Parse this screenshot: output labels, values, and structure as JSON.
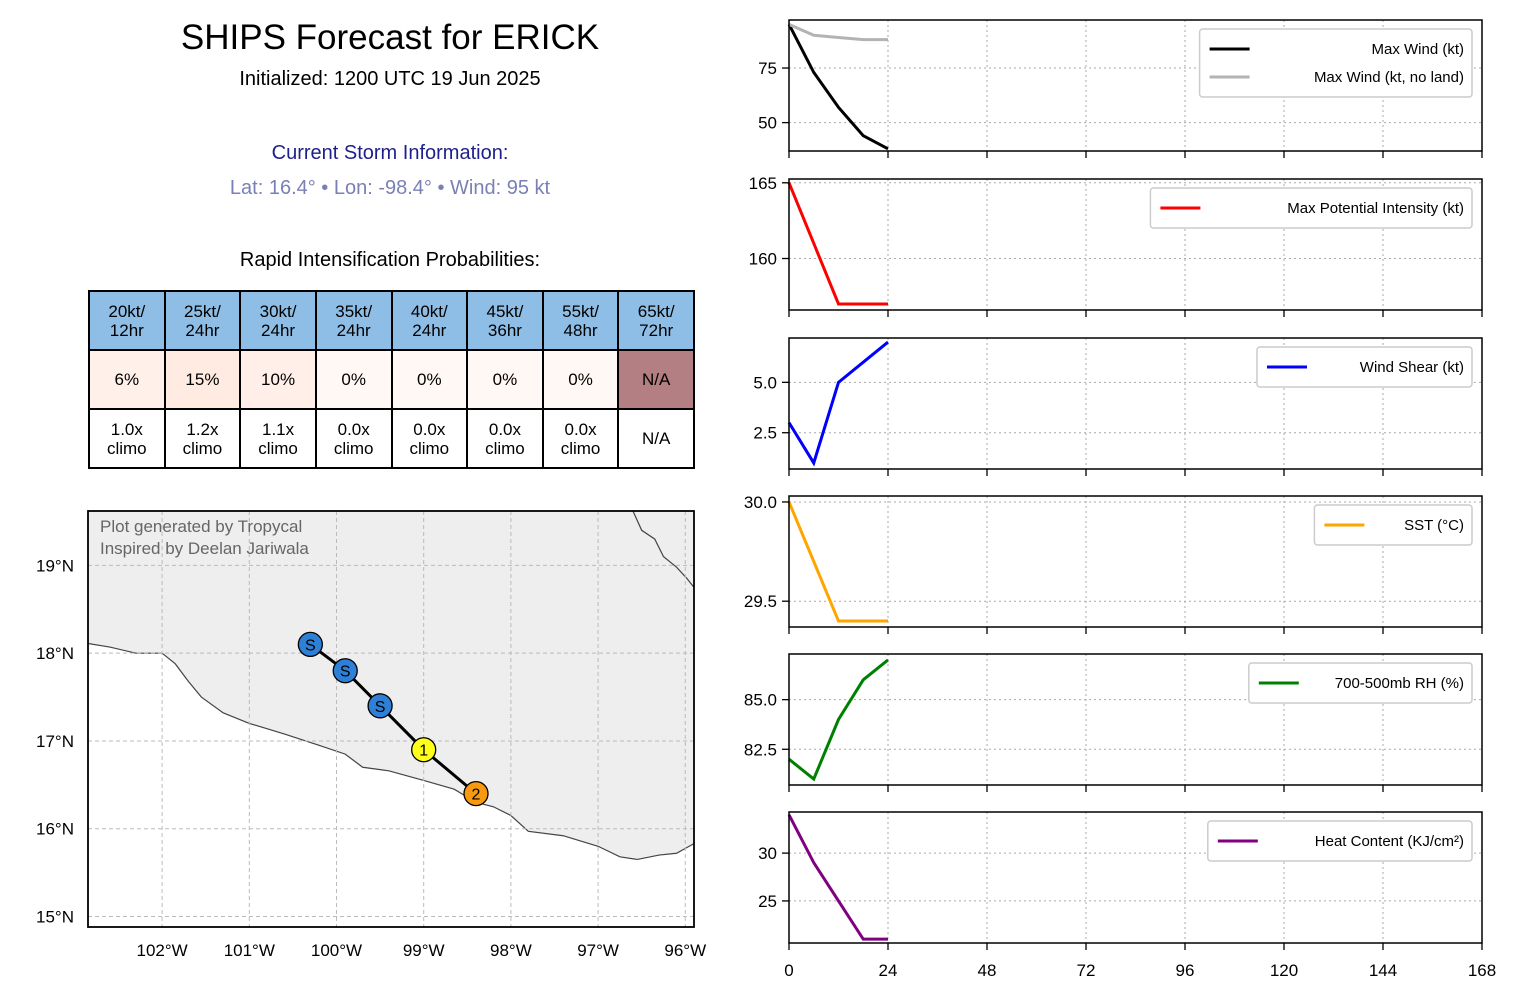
{
  "header": {
    "title": "SHIPS Forecast for ERICK",
    "initialized": "Initialized: 1200 UTC 19 Jun 2025",
    "current_heading": "Current Storm Information:",
    "current_line": "Lat: 16.4°  • Lon: -98.4°  • Wind: 95 kt"
  },
  "ri": {
    "heading": "Rapid Intensification Probabilities:",
    "columns": [
      "20kt/\n12hr",
      "25kt/\n24hr",
      "30kt/\n24hr",
      "35kt/\n24hr",
      "40kt/\n24hr",
      "45kt/\n36hr",
      "55kt/\n48hr",
      "65kt/\n72hr"
    ],
    "probabilities": [
      "6%",
      "15%",
      "10%",
      "0%",
      "0%",
      "0%",
      "0%",
      "N/A"
    ],
    "climo": [
      "1.0x\nclimo",
      "1.2x\nclimo",
      "1.1x\nclimo",
      "0.0x\nclimo",
      "0.0x\nclimo",
      "0.0x\nclimo",
      "0.0x\nclimo",
      "N/A"
    ],
    "header_color": "#8ebde5",
    "prob_colors": [
      "#fff1ea",
      "#ffebe2",
      "#ffefe8",
      "#fff8f5",
      "#fff8f5",
      "#fff8f5",
      "#fff8f5",
      "#b47f82"
    ]
  },
  "map": {
    "credit_1": "Plot generated by Tropycal",
    "credit_2": "Inspired by Deelan Jariwala",
    "lon_ticks": [
      -102,
      -101,
      -100,
      -99,
      -98,
      -97,
      -96
    ],
    "lon_labels": [
      "102°W",
      "101°W",
      "100°W",
      "99°W",
      "98°W",
      "97°W",
      "96°W"
    ],
    "lat_ticks": [
      15,
      16,
      17,
      18,
      19
    ],
    "lat_labels": [
      "15°N",
      "16°N",
      "17°N",
      "18°N",
      "19°N"
    ],
    "lon_range": [
      -102.85,
      -95.9
    ],
    "lat_range": [
      14.88,
      19.62
    ],
    "land_color": "#eeeeee",
    "coast": [
      [
        -102.85,
        18.11
      ],
      [
        -102.6,
        18.07
      ],
      [
        -102.3,
        18.0
      ],
      [
        -102.0,
        18.0
      ],
      [
        -101.85,
        17.88
      ],
      [
        -101.7,
        17.68
      ],
      [
        -101.55,
        17.5
      ],
      [
        -101.3,
        17.32
      ],
      [
        -101.0,
        17.2
      ],
      [
        -100.6,
        17.08
      ],
      [
        -100.2,
        16.95
      ],
      [
        -99.9,
        16.85
      ],
      [
        -99.7,
        16.7
      ],
      [
        -99.4,
        16.66
      ],
      [
        -99.0,
        16.55
      ],
      [
        -98.65,
        16.45
      ],
      [
        -98.4,
        16.3
      ],
      [
        -98.2,
        16.25
      ],
      [
        -98.0,
        16.15
      ],
      [
        -97.8,
        15.97
      ],
      [
        -97.4,
        15.92
      ],
      [
        -97.0,
        15.8
      ],
      [
        -96.75,
        15.68
      ],
      [
        -96.55,
        15.65
      ],
      [
        -96.3,
        15.7
      ],
      [
        -96.1,
        15.72
      ],
      [
        -95.9,
        15.83
      ]
    ],
    "coast_ne": [
      [
        -96.6,
        19.62
      ],
      [
        -96.5,
        19.4
      ],
      [
        -96.35,
        19.3
      ],
      [
        -96.25,
        19.1
      ],
      [
        -96.1,
        18.98
      ],
      [
        -95.98,
        18.85
      ],
      [
        -95.9,
        18.75
      ]
    ],
    "track": [
      {
        "lon": -98.4,
        "lat": 16.4,
        "label": "2",
        "color": "#f79a10"
      },
      {
        "lon": -99.0,
        "lat": 16.9,
        "label": "1",
        "color": "#ffff1a"
      },
      {
        "lon": -99.5,
        "lat": 17.4,
        "label": "S",
        "color": "#2e7fd6"
      },
      {
        "lon": -99.9,
        "lat": 17.8,
        "label": "S",
        "color": "#2e7fd6"
      },
      {
        "lon": -100.3,
        "lat": 18.1,
        "label": "S",
        "color": "#2e7fd6"
      }
    ]
  },
  "chart_data": [
    {
      "type": "line",
      "x": [
        0,
        6,
        12,
        18,
        24
      ],
      "series": [
        {
          "name": "Max Wind (kt)",
          "values": [
            95,
            73,
            57,
            44,
            38
          ],
          "color": "#000000"
        },
        {
          "name": "Max Wind (kt, no land)",
          "values": [
            95,
            90,
            89,
            88,
            88
          ],
          "color": "#b3b3b3"
        }
      ],
      "xlim": [
        0,
        168
      ],
      "ylim": [
        37,
        97
      ],
      "yticks": [
        50,
        75
      ],
      "ytick_labels": [
        "50",
        "75"
      ],
      "legend_position": "top-right",
      "grid": true
    },
    {
      "type": "line",
      "x": [
        0,
        6,
        12,
        18,
        24
      ],
      "series": [
        {
          "name": "Max Potential Intensity (kt)",
          "values": [
            165,
            161,
            157,
            157,
            157
          ],
          "color": "#ff0000"
        }
      ],
      "xlim": [
        0,
        168
      ],
      "ylim": [
        156.6,
        165.25
      ],
      "yticks": [
        160,
        165
      ],
      "ytick_labels": [
        "160",
        "165"
      ],
      "legend_position": "top-right",
      "grid": true
    },
    {
      "type": "line",
      "x": [
        0,
        6,
        12,
        18,
        24
      ],
      "series": [
        {
          "name": "Wind Shear (kt)",
          "values": [
            3.0,
            1.0,
            5.0,
            6.0,
            7.0
          ],
          "color": "#0000ff"
        }
      ],
      "xlim": [
        0,
        168
      ],
      "ylim": [
        0.7,
        7.2
      ],
      "yticks": [
        2.5,
        5.0
      ],
      "ytick_labels": [
        "2.5",
        "5.0"
      ],
      "legend_position": "top-right",
      "grid": true
    },
    {
      "type": "line",
      "x": [
        0,
        6,
        12,
        18,
        24
      ],
      "series": [
        {
          "name": "SST (°C)",
          "values": [
            30.0,
            29.7,
            29.4,
            29.4,
            29.4
          ],
          "color": "#ffa500"
        }
      ],
      "xlim": [
        0,
        168
      ],
      "ylim": [
        29.37,
        30.03
      ],
      "yticks": [
        29.5,
        30.0
      ],
      "ytick_labels": [
        "29.5",
        "30.0"
      ],
      "legend_position": "top-right",
      "grid": true
    },
    {
      "type": "line",
      "x": [
        0,
        6,
        12,
        18,
        24
      ],
      "series": [
        {
          "name": "700-500mb RH (%)",
          "values": [
            82.0,
            81.0,
            84.0,
            86.0,
            87.0
          ],
          "color": "#008000"
        }
      ],
      "xlim": [
        0,
        168
      ],
      "ylim": [
        80.7,
        87.3
      ],
      "yticks": [
        82.5,
        85.0
      ],
      "ytick_labels": [
        "82.5",
        "85.0"
      ],
      "legend_position": "top-right",
      "grid": true
    },
    {
      "type": "line",
      "x": [
        0,
        6,
        12,
        18,
        24
      ],
      "series": [
        {
          "name": "Heat Content (KJ/cm²)",
          "values": [
            34,
            29,
            25,
            21,
            21
          ],
          "color": "#800080"
        }
      ],
      "xlim": [
        0,
        168
      ],
      "ylim": [
        20.6,
        34.3
      ],
      "yticks": [
        25,
        30
      ],
      "ytick_labels": [
        "25",
        "30"
      ],
      "legend_position": "top-right",
      "grid": true
    }
  ],
  "x_axis": {
    "ticks": [
      0,
      24,
      48,
      72,
      96,
      120,
      144,
      168
    ],
    "labels": [
      "0",
      "24",
      "48",
      "72",
      "96",
      "120",
      "144",
      "168"
    ]
  }
}
